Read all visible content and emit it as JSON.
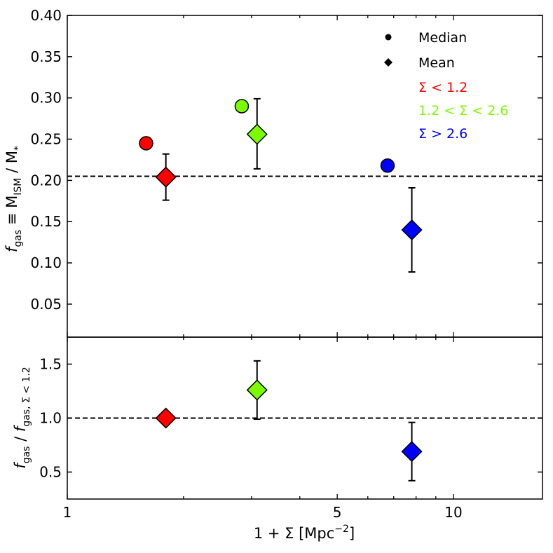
{
  "chart_data": [
    {
      "type": "scatter",
      "panel": "top",
      "x_scale": "log",
      "xlim": [
        1,
        17
      ],
      "ylim": [
        0.01,
        0.4
      ],
      "yticks": [
        0.05,
        0.1,
        0.15,
        0.2,
        0.25,
        0.3,
        0.35,
        0.4
      ],
      "ytick_labels": [
        "0.05",
        "0.10",
        "0.15",
        "0.20",
        "0.25",
        "0.30",
        "0.35",
        "0.40"
      ],
      "ylabel": {
        "f": "f",
        "gas": "gas",
        "equiv": " ≡ M",
        "ism": "ISM",
        "slash": " / M",
        "star": "*"
      },
      "reference_line": 0.205,
      "median": [
        {
          "name": "Σ < 1.2",
          "color": "#ff0000",
          "x": 1.6,
          "y": 0.245
        },
        {
          "name": "1.2 < Σ < 2.6",
          "color": "#7cfc00",
          "x": 2.83,
          "y": 0.29
        },
        {
          "name": "Σ > 2.6",
          "color": "#0000ff",
          "x": 6.75,
          "y": 0.218
        }
      ],
      "mean": [
        {
          "name": "Σ < 1.2",
          "color": "#ff0000",
          "x": 1.8,
          "y": 0.204,
          "err_low": 0.028,
          "err_high": 0.028
        },
        {
          "name": "1.2 < Σ < 2.6",
          "color": "#7cfc00",
          "x": 3.1,
          "y": 0.256,
          "err_low": 0.042,
          "err_high": 0.043
        },
        {
          "name": "Σ > 2.6",
          "color": "#0000ff",
          "x": 7.8,
          "y": 0.14,
          "err_low": 0.051,
          "err_high": 0.051
        }
      ],
      "legend": {
        "placement": "top-right",
        "marker_entries": [
          {
            "label": "Median",
            "marker": "circle"
          },
          {
            "label": "Mean",
            "marker": "diamond"
          }
        ],
        "color_entries": [
          {
            "label": "Σ < 1.2",
            "color": "#ff0000"
          },
          {
            "label": "1.2 < Σ < 2.6",
            "color": "#7cfc00"
          },
          {
            "label": "Σ > 2.6",
            "color": "#0000ff"
          }
        ]
      }
    },
    {
      "type": "scatter",
      "panel": "bottom",
      "x_scale": "log",
      "xlim": [
        1,
        17
      ],
      "ylim": [
        0.25,
        1.75
      ],
      "yticks": [
        0.5,
        1.0,
        1.5
      ],
      "ytick_labels": [
        "0.5",
        "1.0",
        "1.5"
      ],
      "ylabel": {
        "f1": "f",
        "gas1": "gas",
        "slash": " / ",
        "f2": "f",
        "gas2": "gas, Σ < 1.2"
      },
      "reference_line": 1.0,
      "mean": [
        {
          "name": "Σ < 1.2",
          "color": "#ff0000",
          "x": 1.8,
          "y": 1.0,
          "err_low": 0.0,
          "err_high": 0.0
        },
        {
          "name": "1.2 < Σ < 2.6",
          "color": "#7cfc00",
          "x": 3.1,
          "y": 1.26,
          "err_low": 0.27,
          "err_high": 0.27
        },
        {
          "name": "Σ > 2.6",
          "color": "#0000ff",
          "x": 7.8,
          "y": 0.69,
          "err_low": 0.27,
          "err_high": 0.27
        }
      ],
      "xticks": [
        1,
        5,
        10
      ],
      "xtick_labels": [
        "1",
        "5",
        "10"
      ],
      "xlabel": {
        "main": "1 + Σ [Mpc",
        "exp": "−2",
        "close": "]"
      }
    }
  ]
}
